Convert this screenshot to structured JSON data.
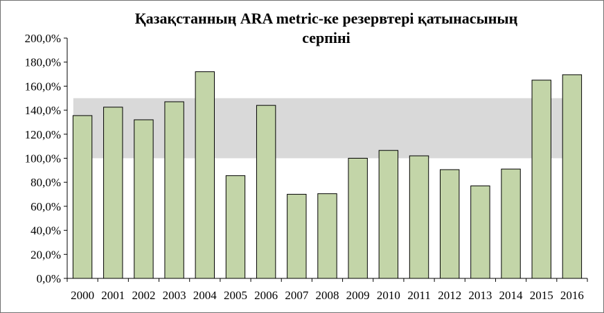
{
  "chart_data": {
    "type": "bar",
    "title_lines": [
      "Қазақстанның ARA metric-ке резервтері қатынасының",
      "серпіні"
    ],
    "categories": [
      "2000",
      "2001",
      "2002",
      "2003",
      "2004",
      "2005",
      "2006",
      "2007",
      "2008",
      "2009",
      "2010",
      "2011",
      "2012",
      "2013",
      "2014",
      "2015",
      "2016"
    ],
    "values": [
      135.5,
      142.5,
      132.0,
      147.0,
      172.0,
      85.5,
      144.0,
      70.0,
      70.5,
      100.0,
      106.5,
      102.0,
      90.5,
      77.0,
      91.0,
      165.0,
      169.5
    ],
    "ylim": [
      0,
      200
    ],
    "yticks": [
      0,
      20,
      40,
      60,
      80,
      100,
      120,
      140,
      160,
      180,
      200
    ],
    "ytick_labels": [
      "0,0%",
      "20,0%",
      "40,0%",
      "60,0%",
      "80,0%",
      "100,0%",
      "120,0%",
      "140,0%",
      "160,0%",
      "180,0%",
      "200,0%"
    ],
    "adequacy_band": [
      100,
      150
    ],
    "bar_color": "#c3d5a8",
    "band_color": "#d9d9d9",
    "grid": false,
    "legend": "none"
  }
}
